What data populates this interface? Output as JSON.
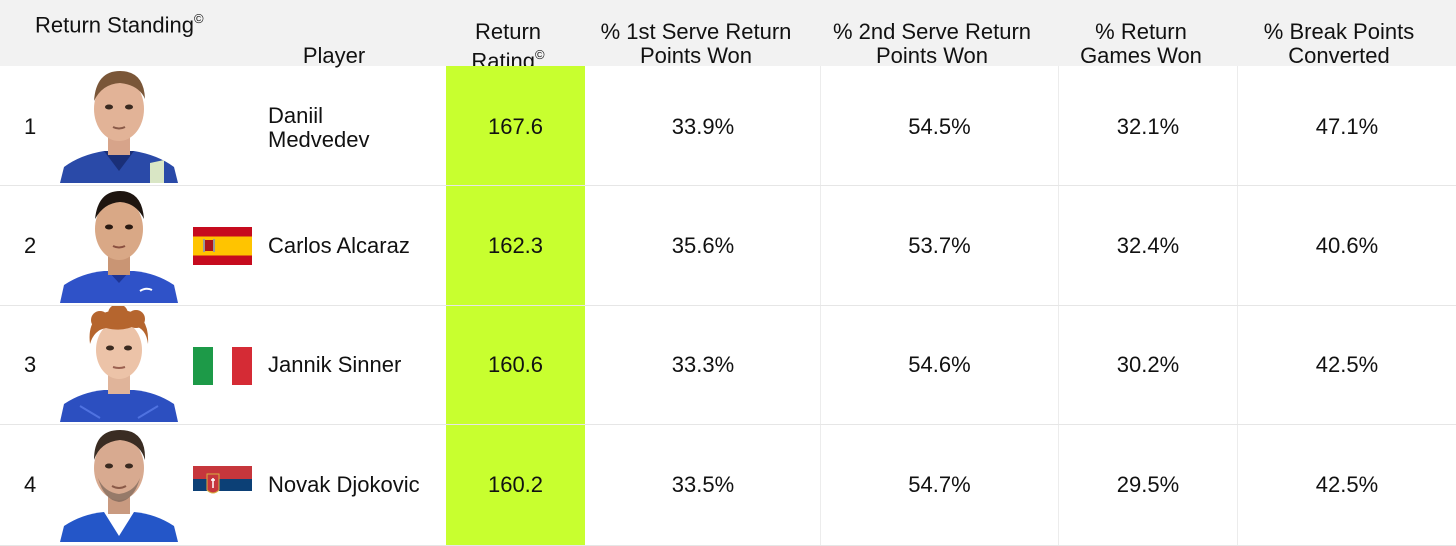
{
  "header": {
    "title": "Return Standing",
    "title_mark": "©",
    "player": "Player",
    "return_rating_line1": "Return",
    "return_rating_line2": "Rating",
    "return_rating_mark": "©",
    "first_serve_line1": "% 1st Serve Return",
    "first_serve_line2": "Points Won",
    "second_serve_line1": "% 2nd Serve Return",
    "second_serve_line2": "Points Won",
    "return_games_line1": "% Return",
    "return_games_line2": "Games Won",
    "break_points_line1": "% Break Points",
    "break_points_line2": "Converted"
  },
  "colors": {
    "highlight": "#c8ff2f",
    "header_bg": "#f2f2f2"
  },
  "rows": [
    {
      "rank": "1",
      "name_line1": "Daniil",
      "name_line2": "Medvedev",
      "flag": "none",
      "rating": "167.6",
      "first": "33.9%",
      "second": "54.5%",
      "games": "32.1%",
      "bp": "47.1%"
    },
    {
      "rank": "2",
      "name": "Carlos Alcaraz",
      "flag": "spain-flag",
      "rating": "162.3",
      "first": "35.6%",
      "second": "53.7%",
      "games": "32.4%",
      "bp": "40.6%"
    },
    {
      "rank": "3",
      "name": "Jannik Sinner",
      "flag": "italy-flag",
      "rating": "160.6",
      "first": "33.3%",
      "second": "54.6%",
      "games": "30.2%",
      "bp": "42.5%"
    },
    {
      "rank": "4",
      "name": "Novak Djokovic",
      "flag": "serbia-flag",
      "rating": "160.2",
      "first": "33.5%",
      "second": "54.7%",
      "games": "29.5%",
      "bp": "42.5%"
    }
  ]
}
